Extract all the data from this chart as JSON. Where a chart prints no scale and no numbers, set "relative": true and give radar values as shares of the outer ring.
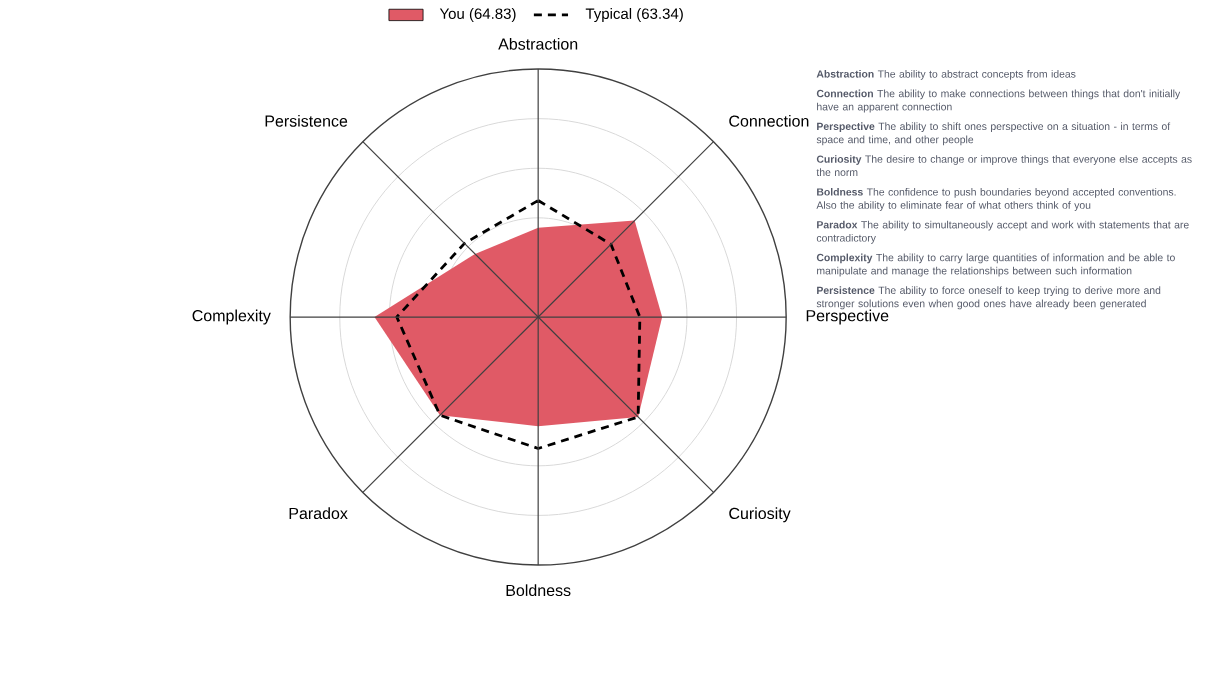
{
  "chart_data": {
    "type": "radar",
    "relative": true,
    "grid": true,
    "legend": "top",
    "marker": "none",
    "categories": [
      "Abstraction",
      "Connection",
      "Perspective",
      "Curiosity",
      "Boldness",
      "Paradox",
      "Complexity",
      "Persistence"
    ],
    "series": [
      {
        "name": "You (64.83)",
        "type": "area",
        "color": "#e05a66",
        "values": [
          0.36,
          0.55,
          0.5,
          0.57,
          0.44,
          0.56,
          0.66,
          0.36
        ]
      },
      {
        "name": "Typical (63.34)",
        "color": "#000000",
        "line_style": "dashed",
        "values": [
          0.47,
          0.415,
          0.41,
          0.57,
          0.53,
          0.56,
          0.57,
          0.42
        ]
      }
    ],
    "annotations": [
      "**Abstraction** The ability to abstract concepts from ideas",
      "**Connection** The ability to make connections between things that don't initially have an apparent connection",
      "**Perspective** The ability to shift ones perspective on a situation - in terms of space and time, and other people",
      "**Curiosity** The desire to change or improve things that everyone else accepts as the norm",
      "**Boldness** The confidence to push boundaries beyond accepted conventions. Also the ability to eliminate fear of what others think of you",
      "**Paradox** The ability to simultaneously accept and work with statements that are contradictory",
      "**Complexity** The ability to carry large quantities of information and be able to manipulate and manage the relationships between such information",
      "**Persistence** The ability to force oneself to keep trying to derive more and stronger solutions even when good ones have already been generated"
    ]
  }
}
